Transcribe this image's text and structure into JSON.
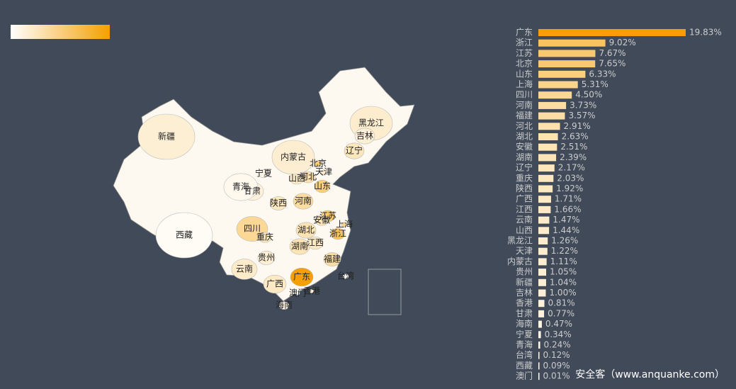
{
  "chart_data": {
    "type": "bar",
    "orientation": "horizontal",
    "categories": [
      "广东",
      "浙江",
      "江苏",
      "北京",
      "山东",
      "上海",
      "四川",
      "河南",
      "福建",
      "河北",
      "湖北",
      "安徽",
      "湖南",
      "辽宁",
      "重庆",
      "陕西",
      "广西",
      "江西",
      "云南",
      "山西",
      "黑龙江",
      "天津",
      "内蒙古",
      "贵州",
      "新疆",
      "吉林",
      "香港",
      "甘肃",
      "海南",
      "宁夏",
      "青海",
      "台湾",
      "西藏",
      "澳门"
    ],
    "values": [
      19.83,
      9.02,
      7.67,
      7.65,
      6.33,
      5.31,
      4.5,
      3.73,
      3.57,
      2.91,
      2.63,
      2.51,
      2.39,
      2.17,
      2.03,
      1.92,
      1.71,
      1.66,
      1.47,
      1.44,
      1.26,
      1.22,
      1.11,
      1.05,
      1.04,
      1.0,
      0.81,
      0.77,
      0.47,
      0.34,
      0.24,
      0.12,
      0.09,
      0.01
    ],
    "value_labels": [
      "19.83%",
      "9.02%",
      "7.67%",
      "7.65%",
      "6.33%",
      "5.31%",
      "4.50%",
      "3.73%",
      "3.57%",
      "2.91%",
      "2.63%",
      "2.51%",
      "2.39%",
      "2.17%",
      "2.03%",
      "1.92%",
      "1.71%",
      "1.66%",
      "1.47%",
      "1.44%",
      "1.26%",
      "1.22%",
      "1.11%",
      "1.05%",
      "1.04%",
      "1.00%",
      "0.81%",
      "0.77%",
      "0.47%",
      "0.34%",
      "0.24%",
      "0.12%",
      "0.09%",
      "0.01%"
    ],
    "color_range": [
      "#ffffff",
      "#f5a000"
    ]
  },
  "watermark": "安全客（www.anquanke.com）"
}
